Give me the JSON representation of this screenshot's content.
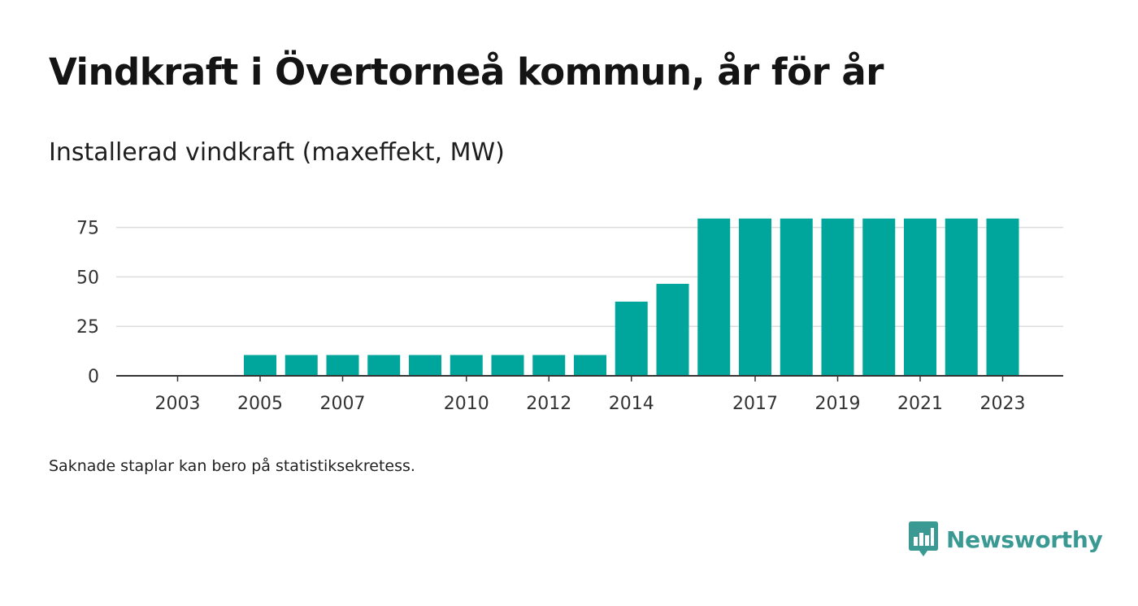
{
  "title": "Vindkraft i Övertorneå kommun, år för år",
  "subtitle": "Installerad vindkraft (maxeffekt, MW)",
  "footnote": "Saknade staplar kan bero på statistiksekretess.",
  "brand": {
    "name": "Newsworthy",
    "icon": "bar-chart-speech-bubble-icon",
    "color": "#3a9a93"
  },
  "chart_data": {
    "type": "bar",
    "color": "#00a59b",
    "categories": [
      2003,
      2004,
      2005,
      2006,
      2007,
      2008,
      2009,
      2010,
      2011,
      2012,
      2013,
      2014,
      2015,
      2016,
      2017,
      2018,
      2019,
      2020,
      2021,
      2022,
      2023
    ],
    "values": [
      null,
      null,
      10.5,
      10.5,
      10.5,
      10.5,
      10.5,
      10.5,
      10.5,
      10.5,
      10.5,
      37.5,
      46.5,
      79.5,
      79.5,
      79.5,
      79.5,
      79.5,
      79.5,
      79.5,
      79.5
    ],
    "x_tick_labels": [
      "2003",
      "2005",
      "2007",
      "2010",
      "2012",
      "2014",
      "2017",
      "2019",
      "2021",
      "2023"
    ],
    "y_ticks": [
      0,
      25,
      50,
      75
    ],
    "ylim": [
      0,
      80
    ],
    "grid": true,
    "xlabel": "",
    "ylabel": ""
  }
}
